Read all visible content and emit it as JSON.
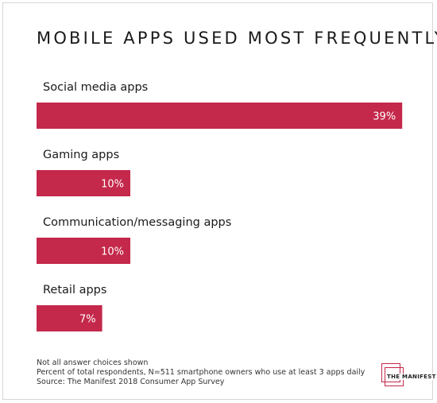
{
  "chart_data": {
    "type": "bar",
    "orientation": "horizontal",
    "title": "MOBILE APPS USED MOST FREQUENTLY",
    "categories": [
      "Social media apps",
      "Gaming apps",
      "Communication/messaging apps",
      "Retail apps"
    ],
    "values": [
      39,
      10,
      10,
      7
    ],
    "value_labels": [
      "39%",
      "10%",
      "10%",
      "7%"
    ],
    "unit": "%",
    "xlim": [
      0,
      40
    ],
    "grid": false,
    "legend": "none",
    "bar_color": "#c4284a"
  },
  "footnotes": {
    "line1": "Not all answer choices shown",
    "line2": "Percent of total respondents, N=511 smartphone owners who use at least 3 apps daily",
    "line3": "Source: The Manifest 2018 Consumer App Survey"
  },
  "logo": {
    "text": "THE MANIFEST",
    "accent": "#c4284a"
  }
}
